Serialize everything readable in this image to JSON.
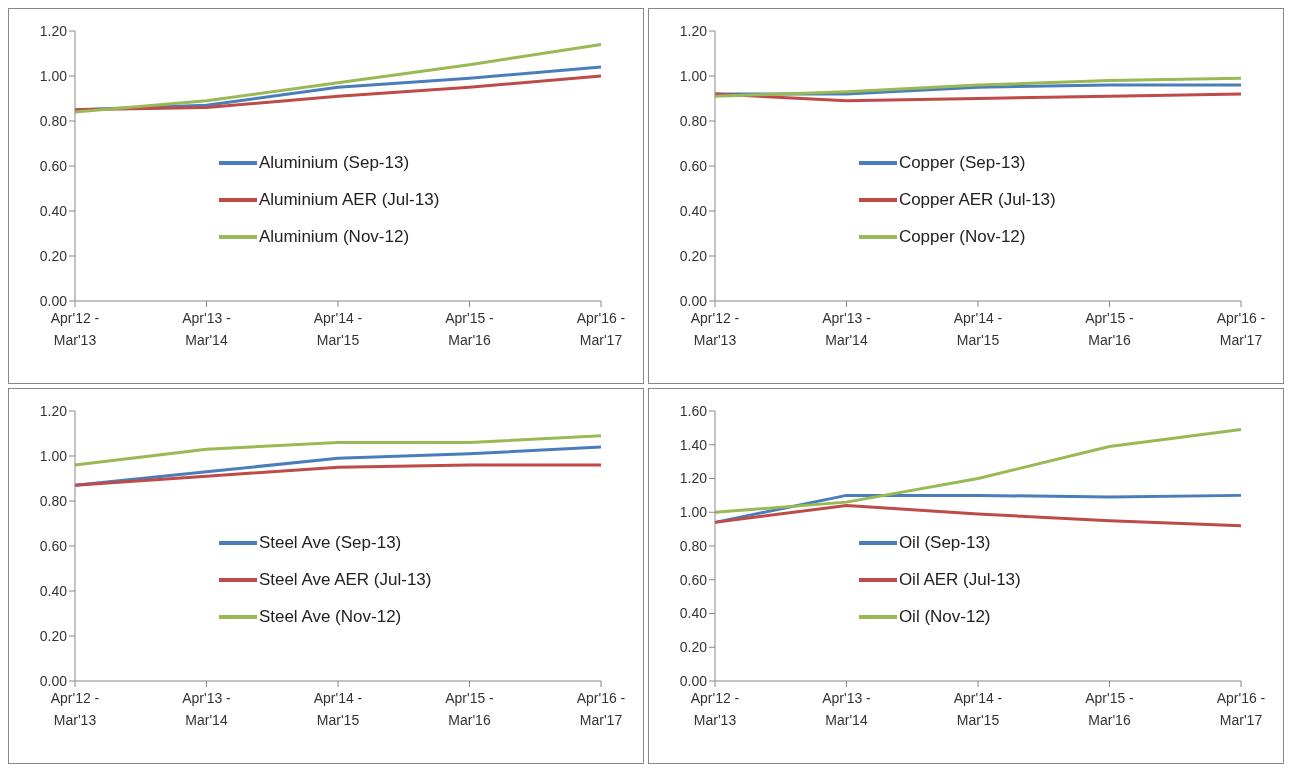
{
  "chart_data": [
    {
      "type": "line",
      "categories": [
        "Apr'12 -\nMar'13",
        "Apr'13 -\nMar'14",
        "Apr'14 -\nMar'15",
        "Apr'15 -\nMar'16",
        "Apr'16 -\nMar'17"
      ],
      "ylim": [
        0,
        1.2
      ],
      "yticks": [
        {
          "value": 0,
          "label": "0.00"
        },
        {
          "value": 0.2,
          "label": "0.20"
        },
        {
          "value": 0.4,
          "label": "0.40"
        },
        {
          "value": 0.6,
          "label": "0.60"
        },
        {
          "value": 0.8,
          "label": "0.80"
        },
        {
          "value": 1,
          "label": "1.00"
        },
        {
          "value": 1.2,
          "label": "1.20"
        }
      ],
      "grid": false,
      "legend": "center",
      "marker": "none",
      "series": [
        {
          "name": "Aluminium (Sep-13)",
          "color": "#4a7ebb",
          "values": [
            0.85,
            0.87,
            0.95,
            0.99,
            1.04
          ]
        },
        {
          "name": "Aluminium AER (Jul-13)",
          "color": "#be4b48",
          "values": [
            0.85,
            0.86,
            0.91,
            0.95,
            1.0
          ]
        },
        {
          "name": "Aluminium (Nov-12)",
          "color": "#98b954",
          "values": [
            0.84,
            0.89,
            0.97,
            1.05,
            1.14
          ]
        }
      ]
    },
    {
      "type": "line",
      "categories": [
        "Apr'12 -\nMar'13",
        "Apr'13 -\nMar'14",
        "Apr'14 -\nMar'15",
        "Apr'15 -\nMar'16",
        "Apr'16 -\nMar'17"
      ],
      "ylim": [
        0,
        1.2
      ],
      "yticks": [
        {
          "value": 0,
          "label": "0.00"
        },
        {
          "value": 0.2,
          "label": "0.20"
        },
        {
          "value": 0.4,
          "label": "0.40"
        },
        {
          "value": 0.6,
          "label": "0.60"
        },
        {
          "value": 0.8,
          "label": "0.80"
        },
        {
          "value": 1,
          "label": "1.00"
        },
        {
          "value": 1.2,
          "label": "1.20"
        }
      ],
      "grid": false,
      "legend": "center",
      "marker": "none",
      "series": [
        {
          "name": "Copper (Sep-13)",
          "color": "#4a7ebb",
          "values": [
            0.92,
            0.92,
            0.95,
            0.96,
            0.96
          ]
        },
        {
          "name": "Copper AER (Jul-13)",
          "color": "#be4b48",
          "values": [
            0.92,
            0.89,
            0.9,
            0.91,
            0.92
          ]
        },
        {
          "name": "Copper (Nov-12)",
          "color": "#98b954",
          "values": [
            0.91,
            0.93,
            0.96,
            0.98,
            0.99
          ]
        }
      ]
    },
    {
      "type": "line",
      "categories": [
        "Apr'12 -\nMar'13",
        "Apr'13 -\nMar'14",
        "Apr'14 -\nMar'15",
        "Apr'15 -\nMar'16",
        "Apr'16 -\nMar'17"
      ],
      "ylim": [
        0,
        1.2
      ],
      "yticks": [
        {
          "value": 0,
          "label": "0.00"
        },
        {
          "value": 0.2,
          "label": "0.20"
        },
        {
          "value": 0.4,
          "label": "0.40"
        },
        {
          "value": 0.6,
          "label": "0.60"
        },
        {
          "value": 0.8,
          "label": "0.80"
        },
        {
          "value": 1,
          "label": "1.00"
        },
        {
          "value": 1.2,
          "label": "1.20"
        }
      ],
      "grid": false,
      "legend": "center",
      "marker": "none",
      "series": [
        {
          "name": "Steel Ave (Sep-13)",
          "color": "#4a7ebb",
          "values": [
            0.87,
            0.93,
            0.99,
            1.01,
            1.04
          ]
        },
        {
          "name": "Steel Ave AER (Jul-13)",
          "color": "#be4b48",
          "values": [
            0.87,
            0.91,
            0.95,
            0.96,
            0.96
          ]
        },
        {
          "name": "Steel Ave (Nov-12)",
          "color": "#98b954",
          "values": [
            0.96,
            1.03,
            1.06,
            1.06,
            1.09
          ]
        }
      ]
    },
    {
      "type": "line",
      "categories": [
        "Apr'12 -\nMar'13",
        "Apr'13 -\nMar'14",
        "Apr'14 -\nMar'15",
        "Apr'15 -\nMar'16",
        "Apr'16 -\nMar'17"
      ],
      "ylim": [
        0,
        1.6
      ],
      "yticks": [
        {
          "value": 0,
          "label": "0.00"
        },
        {
          "value": 0.2,
          "label": "0.20"
        },
        {
          "value": 0.4,
          "label": "0.40"
        },
        {
          "value": 0.6,
          "label": "0.60"
        },
        {
          "value": 0.8,
          "label": "0.80"
        },
        {
          "value": 1,
          "label": "1.00"
        },
        {
          "value": 1.2,
          "label": "1.20"
        },
        {
          "value": 1.4,
          "label": "1.40"
        },
        {
          "value": 1.6,
          "label": "1.60"
        }
      ],
      "grid": false,
      "legend": "center",
      "marker": "none",
      "series": [
        {
          "name": "Oil (Sep-13)",
          "color": "#4a7ebb",
          "values": [
            0.94,
            1.1,
            1.1,
            1.09,
            1.1
          ]
        },
        {
          "name": "Oil AER (Jul-13)",
          "color": "#be4b48",
          "values": [
            0.94,
            1.04,
            0.99,
            0.95,
            0.92
          ]
        },
        {
          "name": "Oil (Nov-12)",
          "color": "#98b954",
          "values": [
            1.0,
            1.06,
            1.2,
            1.39,
            1.49
          ]
        }
      ]
    }
  ]
}
